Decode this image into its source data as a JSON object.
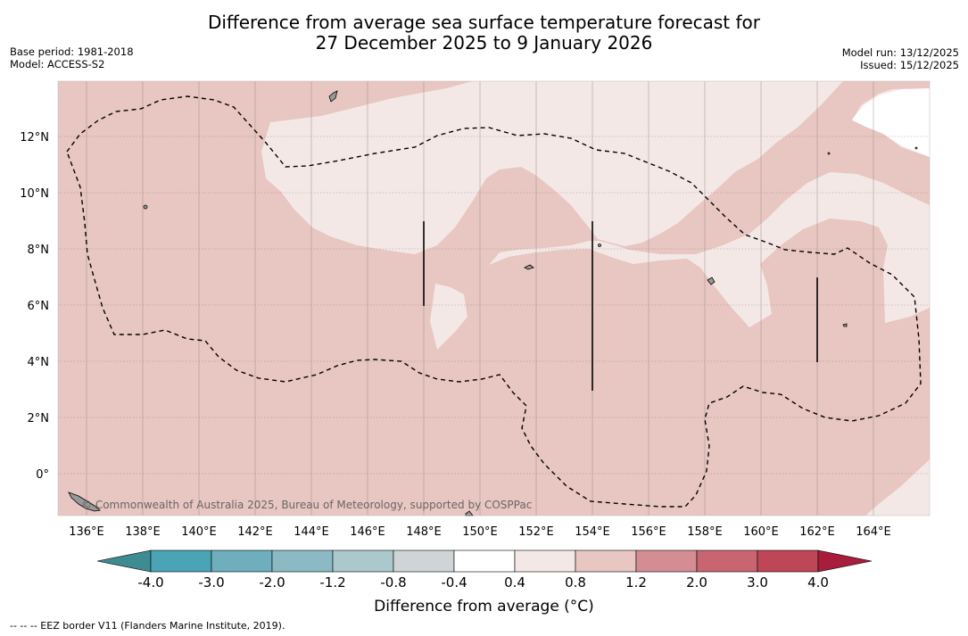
{
  "title": {
    "line1": "Difference from average sea surface temperature forecast for",
    "line2": "27 December 2025 to 9 January 2026"
  },
  "meta_left": {
    "base_period": "Base period: 1981-2018",
    "model": "Model: ACCESS-S2"
  },
  "meta_right": {
    "model_run": "Model run: 13/12/2025",
    "issued": "Issued: 15/12/2025"
  },
  "map": {
    "lon_range": [
      135,
      166
    ],
    "lat_range": [
      -1.5,
      14
    ],
    "lon_ticks": [
      "136°E",
      "138°E",
      "140°E",
      "142°E",
      "144°E",
      "146°E",
      "148°E",
      "150°E",
      "152°E",
      "154°E",
      "156°E",
      "158°E",
      "160°E",
      "162°E",
      "164°E"
    ],
    "lat_ticks": [
      "12°N",
      "10°N",
      "8°N",
      "6°N",
      "4°N",
      "2°N",
      "0°"
    ],
    "copyright": "© Commonwealth of Australia 2025, Bureau of Meteorology, supported by COSPPac",
    "colors": {
      "band_0_8_1_2": "#e8c6c1",
      "band_0_4_0_8": "#f4e8e6",
      "band_neg0_4_0_4": "#ffffff",
      "land": "#999999"
    }
  },
  "colorbar": {
    "tick_labels": [
      "-4.0",
      "-3.0",
      "-2.0",
      "-1.2",
      "-0.8",
      "-0.4",
      "0.4",
      "0.8",
      "1.2",
      "2.0",
      "3.0",
      "4.0"
    ],
    "colors": [
      "#4ba3b6",
      "#6eaebd",
      "#8cbac4",
      "#abc9cd",
      "#cfd5d6",
      "#ffffff",
      "#f4e8e6",
      "#e8c6c1",
      "#d48d93",
      "#c96571",
      "#be4656"
    ],
    "under_color": "#3e8c93",
    "over_color": "#a81d3b",
    "label": "Difference from average (°C)"
  },
  "footnote": "--  --  -- EEZ border V11 (Flanders Marine Institute, 2019)."
}
